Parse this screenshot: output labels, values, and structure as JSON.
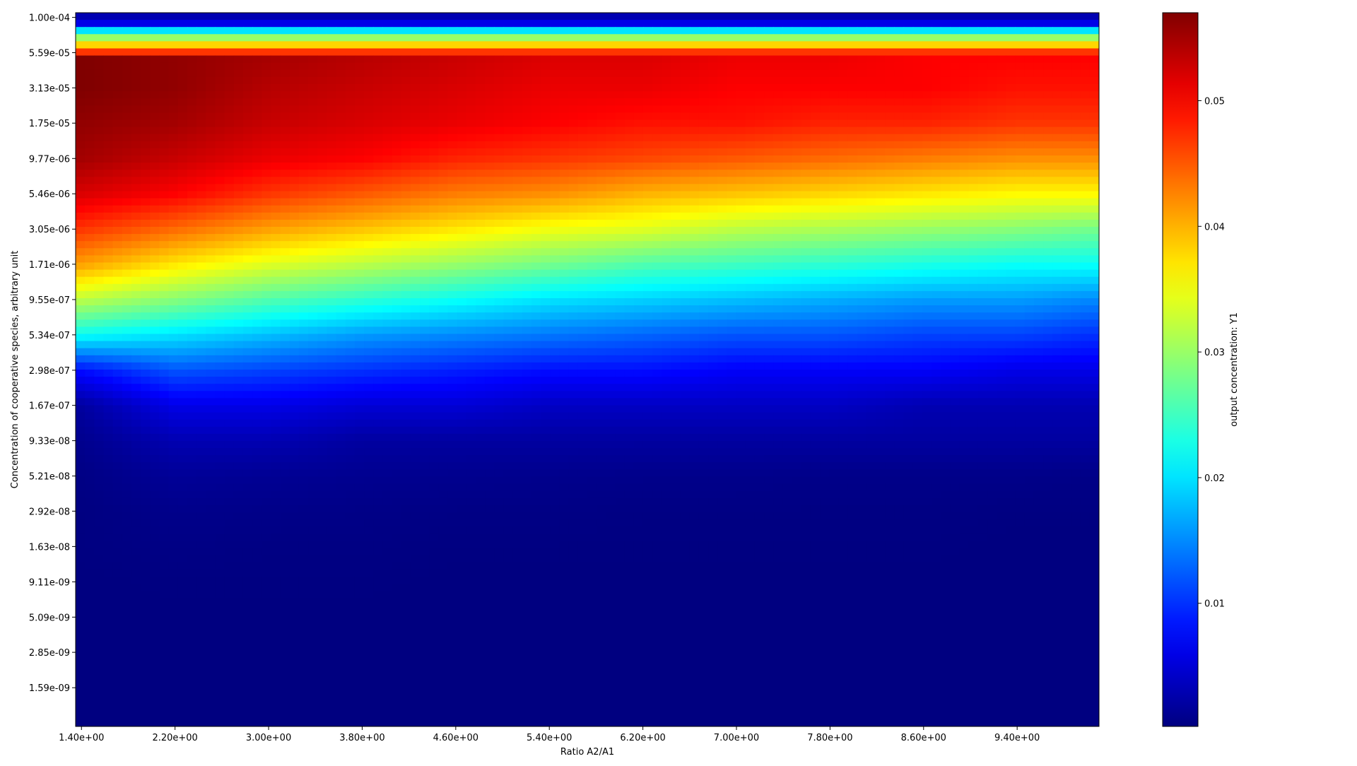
{
  "chart_data": {
    "type": "heatmap",
    "colormap": "jet",
    "xlabel": "Ratio A2/A1",
    "ylabel": "Concentration of cooperative species, arbitrary unit",
    "colorbar_label": "output concentration: Y1",
    "x_scale": "linear",
    "y_scale": "log",
    "xlim": [
      1.35,
      10.1
    ],
    "ylim": [
      8.4e-10,
      0.000108
    ],
    "x_ticks": [
      1.4,
      2.2,
      3.0,
      3.8,
      4.6,
      5.4,
      6.2,
      7.0,
      7.8,
      8.6,
      9.4
    ],
    "x_tick_labels": [
      "1.40e+00",
      "2.20e+00",
      "3.00e+00",
      "3.80e+00",
      "4.60e+00",
      "5.40e+00",
      "6.20e+00",
      "7.00e+00",
      "7.80e+00",
      "8.60e+00",
      "9.40e+00"
    ],
    "y_ticks": [
      0.0001,
      5.59e-05,
      3.13e-05,
      1.75e-05,
      9.77e-06,
      5.46e-06,
      3.05e-06,
      1.71e-06,
      9.55e-07,
      5.34e-07,
      2.98e-07,
      1.67e-07,
      9.33e-08,
      5.21e-08,
      2.92e-08,
      1.63e-08,
      9.11e-09,
      5.09e-09,
      2.85e-09,
      1.59e-09
    ],
    "y_tick_labels": [
      "1.00e-04",
      "5.59e-05",
      "3.13e-05",
      "1.75e-05",
      "9.77e-06",
      "5.46e-06",
      "3.05e-06",
      "1.71e-06",
      "9.55e-07",
      "5.34e-07",
      "2.98e-07",
      "1.67e-07",
      "9.33e-08",
      "5.21e-08",
      "2.92e-08",
      "1.63e-08",
      "9.11e-09",
      "5.09e-09",
      "2.85e-09",
      "1.59e-09"
    ],
    "colorbar_range": [
      0.0002,
      0.057
    ],
    "colorbar_ticks": [
      0.01,
      0.02,
      0.03,
      0.04,
      0.05
    ],
    "colorbar_tick_labels": [
      "0.01",
      "0.02",
      "0.03",
      "0.04",
      "0.05"
    ],
    "x_grid": [
      1.4,
      2.2,
      3.0,
      3.8,
      4.6,
      5.4,
      6.2,
      7.0,
      7.8,
      8.6,
      9.4,
      10.0
    ],
    "y_grid": [
      0.0001,
      5.59e-05,
      3.13e-05,
      1.75e-05,
      9.77e-06,
      5.46e-06,
      3.05e-06,
      1.71e-06,
      9.55e-07,
      5.34e-07,
      2.98e-07,
      1.67e-07,
      9.33e-08,
      5.21e-08,
      2.92e-08,
      1.63e-08,
      9.11e-09,
      5.09e-09,
      2.85e-09,
      1.59e-09,
      1e-09
    ],
    "values": [
      [
        0.003,
        0.003,
        0.003,
        0.003,
        0.003,
        0.003,
        0.003,
        0.003,
        0.003,
        0.003,
        0.003,
        0.003
      ],
      [
        0.057,
        0.056,
        0.055,
        0.054,
        0.053,
        0.052,
        0.052,
        0.051,
        0.051,
        0.05,
        0.05,
        0.05
      ],
      [
        0.057,
        0.056,
        0.054,
        0.053,
        0.052,
        0.051,
        0.051,
        0.05,
        0.05,
        0.05,
        0.049,
        0.049
      ],
      [
        0.056,
        0.055,
        0.053,
        0.052,
        0.051,
        0.05,
        0.049,
        0.049,
        0.048,
        0.048,
        0.047,
        0.047
      ],
      [
        0.055,
        0.053,
        0.051,
        0.05,
        0.048,
        0.047,
        0.046,
        0.045,
        0.044,
        0.043,
        0.042,
        0.042
      ],
      [
        0.052,
        0.05,
        0.047,
        0.045,
        0.043,
        0.042,
        0.04,
        0.039,
        0.038,
        0.037,
        0.036,
        0.036
      ],
      [
        0.047,
        0.044,
        0.041,
        0.039,
        0.037,
        0.035,
        0.034,
        0.032,
        0.031,
        0.03,
        0.029,
        0.028
      ],
      [
        0.041,
        0.037,
        0.034,
        0.032,
        0.03,
        0.028,
        0.026,
        0.025,
        0.024,
        0.023,
        0.022,
        0.022
      ],
      [
        0.032,
        0.029,
        0.026,
        0.024,
        0.022,
        0.02,
        0.019,
        0.018,
        0.017,
        0.016,
        0.016,
        0.015
      ],
      [
        0.022,
        0.02,
        0.018,
        0.016,
        0.015,
        0.014,
        0.013,
        0.012,
        0.012,
        0.011,
        0.011,
        0.01
      ],
      [
        0.008,
        0.012,
        0.011,
        0.01,
        0.009,
        0.008,
        0.008,
        0.007,
        0.007,
        0.007,
        0.006,
        0.006
      ],
      [
        0.002,
        0.006,
        0.006,
        0.005,
        0.005,
        0.004,
        0.004,
        0.004,
        0.004,
        0.003,
        0.003,
        0.003
      ],
      [
        0.001,
        0.003,
        0.003,
        0.002,
        0.002,
        0.002,
        0.002,
        0.002,
        0.002,
        0.002,
        0.002,
        0.002
      ],
      [
        0.0005,
        0.0015,
        0.0013,
        0.0011,
        0.001,
        0.0009,
        0.0008,
        0.0008,
        0.0007,
        0.0007,
        0.0007,
        0.0006
      ],
      [
        0.0003,
        0.0008,
        0.0007,
        0.0006,
        0.0005,
        0.0005,
        0.0004,
        0.0004,
        0.0004,
        0.0004,
        0.0003,
        0.0003
      ],
      [
        0.0003,
        0.0005,
        0.0004,
        0.0004,
        0.0003,
        0.0003,
        0.0003,
        0.0003,
        0.0003,
        0.0003,
        0.0002,
        0.0002
      ],
      [
        0.0002,
        0.0003,
        0.0003,
        0.0003,
        0.0002,
        0.0002,
        0.0002,
        0.0002,
        0.0002,
        0.0002,
        0.0002,
        0.0002
      ],
      [
        0.0002,
        0.0002,
        0.0002,
        0.0002,
        0.0002,
        0.0002,
        0.0002,
        0.0002,
        0.0002,
        0.0002,
        0.0002,
        0.0002
      ],
      [
        0.0002,
        0.0002,
        0.0002,
        0.0002,
        0.0002,
        0.0002,
        0.0002,
        0.0002,
        0.0002,
        0.0002,
        0.0002,
        0.0002
      ],
      [
        0.0002,
        0.0002,
        0.0002,
        0.0002,
        0.0002,
        0.0002,
        0.0002,
        0.0002,
        0.0002,
        0.0002,
        0.0002,
        0.0002
      ],
      [
        0.0002,
        0.0002,
        0.0002,
        0.0002,
        0.0002,
        0.0002,
        0.0002,
        0.0002,
        0.0002,
        0.0002,
        0.0002,
        0.0002
      ]
    ],
    "top_band_values": [
      0.003,
      0.006,
      0.02,
      0.03,
      0.038,
      0.047
    ]
  }
}
